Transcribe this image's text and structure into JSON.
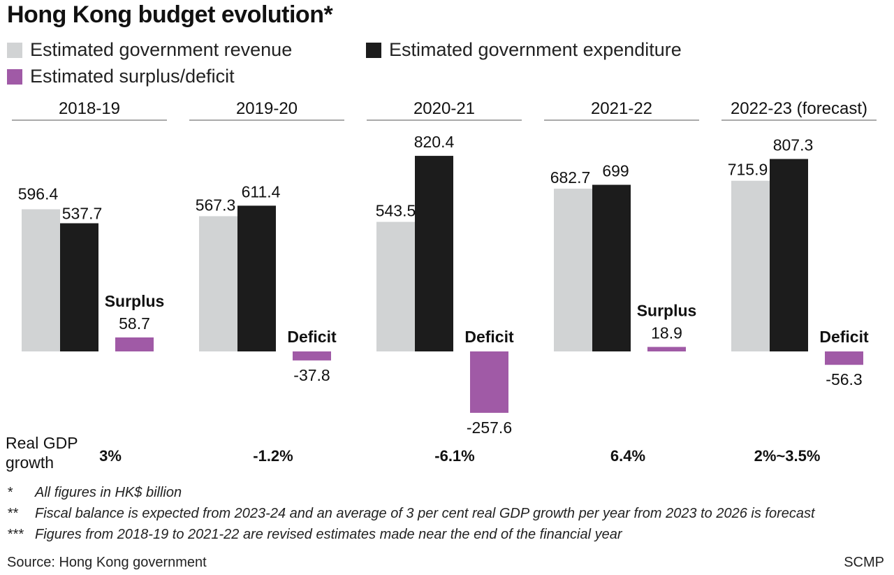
{
  "title": "Hong Kong budget evolution*",
  "legend": [
    {
      "label": "Estimated government revenue",
      "color": "#d1d3d4"
    },
    {
      "label": "Estimated government expenditure",
      "color": "#1c1c1c"
    },
    {
      "label": "Estimated surplus/deficit",
      "color": "#a05aa6"
    }
  ],
  "gdp": {
    "label_line1": "Real GDP",
    "label_line2": "growth",
    "values": [
      "3%",
      "-1.2%",
      "-6.1%",
      "6.4%",
      "2%~3.5%"
    ]
  },
  "notes": [
    {
      "mark": "*",
      "text": "All figures in HK$ billion"
    },
    {
      "mark": "**",
      "text": "Fiscal balance is expected from 2023-24 and an average of 3 per cent real GDP growth per year from 2023 to 2026 is forecast"
    },
    {
      "mark": "***",
      "text": "Figures from 2018-19 to 2021-22 are revised estimates made near the end of the financial year"
    }
  ],
  "source": "Source: Hong Kong government",
  "brand": "SCMP",
  "chart_data": {
    "type": "bar",
    "categories": [
      "2018-19",
      "2019-20",
      "2020-21",
      "2021-22",
      "2022-23 (forecast)"
    ],
    "series": [
      {
        "name": "Estimated government revenue",
        "values": [
          596.4,
          567.3,
          543.5,
          682.7,
          715.9
        ],
        "color": "#d1d3d4"
      },
      {
        "name": "Estimated government expenditure",
        "values": [
          537.7,
          611.4,
          820.4,
          699,
          807.3
        ],
        "color": "#1c1c1c"
      },
      {
        "name": "Estimated surplus/deficit",
        "values": [
          58.7,
          -37.8,
          -257.6,
          18.9,
          -56.3
        ],
        "color": "#a05aa6"
      }
    ],
    "balance_labels": [
      "Surplus",
      "Deficit",
      "Deficit",
      "Surplus",
      "Deficit"
    ],
    "ylim": [
      -257.6,
      820.4
    ],
    "grid": false
  }
}
